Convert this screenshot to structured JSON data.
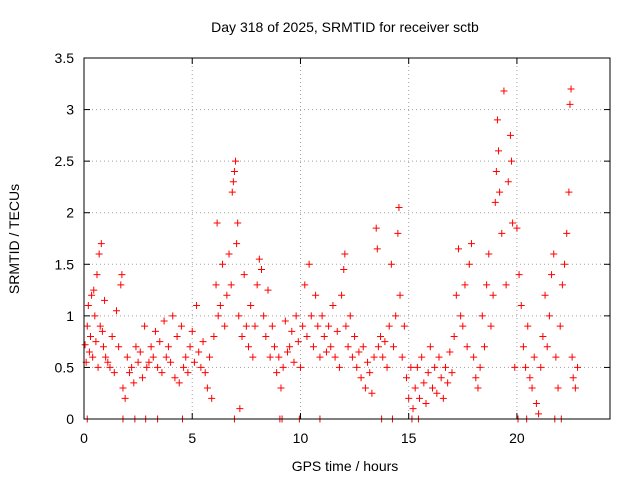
{
  "chart_data": {
    "type": "scatter",
    "title": "Day 318 of 2025, SRMTID for receiver sctb",
    "xlabel": "GPS time / hours",
    "ylabel": "SRMTID / TECUs",
    "xlim": [
      0,
      24.3
    ],
    "ylim": [
      0,
      3.5
    ],
    "xticks": [
      0,
      5,
      10,
      15,
      20
    ],
    "xtick_labels": [
      "0",
      "5",
      "10",
      "15",
      "20"
    ],
    "yticks": [
      0,
      0.5,
      1,
      1.5,
      2,
      2.5,
      3,
      3.5
    ],
    "ytick_labels": [
      "0",
      "0.5",
      "1",
      "1.5",
      "2",
      "2.5",
      "3",
      "3.5"
    ],
    "grid": true,
    "marker": "+",
    "color": "#ff0000",
    "series": [
      {
        "name": "SRMTID",
        "points": [
          [
            0.05,
            0.72
          ],
          [
            0.1,
            0.55
          ],
          [
            0.15,
            0.9
          ],
          [
            0.2,
            1.1
          ],
          [
            0.25,
            0.65
          ],
          [
            0.3,
            0.8
          ],
          [
            0.35,
            1.2
          ],
          [
            0.4,
            0.6
          ],
          [
            0.45,
            1.25
          ],
          [
            0.5,
            1.0
          ],
          [
            0.55,
            0.75
          ],
          [
            0.6,
            1.4
          ],
          [
            0.65,
            0.5
          ],
          [
            0.7,
            1.6
          ],
          [
            0.75,
            0.9
          ],
          [
            0.8,
            1.7
          ],
          [
            0.85,
            0.85
          ],
          [
            0.9,
            0.7
          ],
          [
            0.95,
            1.15
          ],
          [
            1.0,
            0.6
          ],
          [
            1.1,
            0.55
          ],
          [
            1.2,
            0.5
          ],
          [
            1.3,
            0.8
          ],
          [
            1.4,
            0.45
          ],
          [
            1.5,
            1.05
          ],
          [
            1.6,
            0.7
          ],
          [
            1.7,
            1.3
          ],
          [
            1.75,
            1.4
          ],
          [
            1.8,
            0.3
          ],
          [
            1.9,
            0.2
          ],
          [
            2.0,
            0.6
          ],
          [
            2.1,
            0.45
          ],
          [
            2.2,
            0.5
          ],
          [
            2.3,
            0.35
          ],
          [
            2.4,
            0.7
          ],
          [
            2.5,
            0.55
          ],
          [
            2.6,
            0.65
          ],
          [
            2.7,
            0.4
          ],
          [
            2.8,
            0.9
          ],
          [
            2.9,
            0.5
          ],
          [
            3.0,
            0.55
          ],
          [
            3.1,
            0.7
          ],
          [
            3.2,
            0.6
          ],
          [
            3.3,
            0.85
          ],
          [
            3.4,
            0.5
          ],
          [
            3.5,
            0.75
          ],
          [
            3.6,
            0.45
          ],
          [
            3.7,
            0.95
          ],
          [
            3.8,
            0.6
          ],
          [
            3.9,
            0.7
          ],
          [
            4.0,
            0.55
          ],
          [
            4.1,
            1.0
          ],
          [
            4.2,
            0.4
          ],
          [
            4.3,
            0.8
          ],
          [
            4.4,
            0.35
          ],
          [
            4.5,
            0.9
          ],
          [
            4.6,
            0.5
          ],
          [
            4.7,
            0.6
          ],
          [
            4.8,
            0.45
          ],
          [
            4.9,
            0.7
          ],
          [
            5.0,
            0.85
          ],
          [
            5.1,
            0.55
          ],
          [
            5.2,
            1.1
          ],
          [
            5.3,
            0.65
          ],
          [
            5.4,
            0.5
          ],
          [
            5.5,
            0.75
          ],
          [
            5.6,
            0.45
          ],
          [
            5.7,
            0.3
          ],
          [
            5.8,
            0.6
          ],
          [
            5.9,
            0.2
          ],
          [
            6.0,
            0.8
          ],
          [
            6.1,
            1.3
          ],
          [
            6.15,
            1.9
          ],
          [
            6.2,
            1.0
          ],
          [
            6.3,
            1.1
          ],
          [
            6.4,
            1.5
          ],
          [
            6.5,
            0.9
          ],
          [
            6.6,
            1.2
          ],
          [
            6.7,
            1.6
          ],
          [
            6.8,
            1.3
          ],
          [
            6.85,
            2.2
          ],
          [
            6.9,
            2.3
          ],
          [
            6.95,
            2.4
          ],
          [
            7.0,
            2.5
          ],
          [
            7.05,
            1.7
          ],
          [
            7.1,
            1.9
          ],
          [
            7.15,
            1.0
          ],
          [
            7.2,
            0.1
          ],
          [
            7.3,
            0.8
          ],
          [
            7.4,
            1.4
          ],
          [
            7.5,
            0.9
          ],
          [
            7.6,
            0.7
          ],
          [
            7.7,
            1.1
          ],
          [
            7.8,
            0.6
          ],
          [
            7.9,
            0.9
          ],
          [
            8.0,
            1.3
          ],
          [
            8.1,
            1.55
          ],
          [
            8.2,
            1.45
          ],
          [
            8.3,
            1.0
          ],
          [
            8.4,
            0.8
          ],
          [
            8.5,
            1.25
          ],
          [
            8.6,
            0.6
          ],
          [
            8.7,
            0.9
          ],
          [
            8.8,
            0.7
          ],
          [
            8.9,
            0.45
          ],
          [
            9.0,
            0.6
          ],
          [
            9.1,
            0.3
          ],
          [
            9.2,
            0.5
          ],
          [
            9.3,
            0.95
          ],
          [
            9.4,
            0.65
          ],
          [
            9.5,
            0.7
          ],
          [
            9.6,
            0.85
          ],
          [
            9.7,
            0.55
          ],
          [
            9.8,
            1.0
          ],
          [
            9.9,
            0.75
          ],
          [
            10.0,
            0.5
          ],
          [
            10.1,
            0.9
          ],
          [
            10.2,
            1.3
          ],
          [
            10.3,
            0.8
          ],
          [
            10.4,
            1.5
          ],
          [
            10.5,
            1.0
          ],
          [
            10.6,
            0.7
          ],
          [
            10.7,
            1.2
          ],
          [
            10.8,
            0.9
          ],
          [
            10.9,
            0.6
          ],
          [
            11.0,
            1.0
          ],
          [
            11.1,
            0.8
          ],
          [
            11.2,
            0.65
          ],
          [
            11.3,
            0.9
          ],
          [
            11.4,
            0.7
          ],
          [
            11.5,
            1.1
          ],
          [
            11.6,
            0.6
          ],
          [
            11.7,
            0.85
          ],
          [
            11.8,
            0.5
          ],
          [
            11.9,
            1.2
          ],
          [
            12.0,
            1.45
          ],
          [
            12.05,
            1.6
          ],
          [
            12.1,
            0.9
          ],
          [
            12.2,
            0.7
          ],
          [
            12.3,
            1.0
          ],
          [
            12.4,
            0.6
          ],
          [
            12.5,
            0.8
          ],
          [
            12.6,
            0.5
          ],
          [
            12.7,
            0.65
          ],
          [
            12.8,
            0.4
          ],
          [
            12.9,
            0.7
          ],
          [
            13.0,
            0.3
          ],
          [
            13.1,
            0.55
          ],
          [
            13.2,
            0.45
          ],
          [
            13.3,
            0.25
          ],
          [
            13.4,
            0.6
          ],
          [
            13.5,
            1.85
          ],
          [
            13.55,
            1.65
          ],
          [
            13.6,
            0.7
          ],
          [
            13.7,
            0.8
          ],
          [
            13.8,
            0.6
          ],
          [
            13.9,
            0.75
          ],
          [
            14.0,
            0.5
          ],
          [
            14.1,
            0.9
          ],
          [
            14.2,
            1.5
          ],
          [
            14.3,
            0.7
          ],
          [
            14.4,
            1.0
          ],
          [
            14.5,
            1.8
          ],
          [
            14.55,
            2.05
          ],
          [
            14.6,
            1.2
          ],
          [
            14.7,
            0.6
          ],
          [
            14.8,
            0.9
          ],
          [
            14.9,
            0.4
          ],
          [
            15.0,
            0.2
          ],
          [
            15.1,
            0.5
          ],
          [
            15.2,
            0.1
          ],
          [
            15.3,
            0.3
          ],
          [
            15.4,
            0.5
          ],
          [
            15.5,
            0.2
          ],
          [
            15.6,
            0.6
          ],
          [
            15.7,
            0.35
          ],
          [
            15.8,
            0.15
          ],
          [
            15.9,
            0.45
          ],
          [
            16.0,
            0.7
          ],
          [
            16.1,
            0.3
          ],
          [
            16.2,
            0.5
          ],
          [
            16.3,
            0.25
          ],
          [
            16.4,
            0.6
          ],
          [
            16.5,
            0.4
          ],
          [
            16.6,
            0.2
          ],
          [
            16.7,
            0.5
          ],
          [
            16.8,
            0.35
          ],
          [
            16.9,
            0.65
          ],
          [
            17.0,
            0.45
          ],
          [
            17.1,
            0.8
          ],
          [
            17.2,
            1.2
          ],
          [
            17.3,
            1.65
          ],
          [
            17.4,
            1.0
          ],
          [
            17.5,
            0.9
          ],
          [
            17.6,
            1.3
          ],
          [
            17.7,
            0.7
          ],
          [
            17.8,
            1.5
          ],
          [
            17.9,
            1.7
          ],
          [
            18.0,
            0.6
          ],
          [
            18.1,
            0.4
          ],
          [
            18.2,
            0.3
          ],
          [
            18.3,
            0.5
          ],
          [
            18.4,
            1.0
          ],
          [
            18.5,
            0.7
          ],
          [
            18.6,
            1.3
          ],
          [
            18.7,
            1.6
          ],
          [
            18.8,
            0.9
          ],
          [
            18.9,
            1.2
          ],
          [
            19.0,
            2.1
          ],
          [
            19.05,
            2.4
          ],
          [
            19.1,
            2.9
          ],
          [
            19.15,
            2.6
          ],
          [
            19.2,
            2.2
          ],
          [
            19.3,
            1.8
          ],
          [
            19.4,
            3.18
          ],
          [
            19.5,
            1.3
          ],
          [
            19.6,
            2.3
          ],
          [
            19.7,
            2.75
          ],
          [
            19.75,
            2.5
          ],
          [
            19.8,
            1.9
          ],
          [
            19.9,
            0.5
          ],
          [
            20.0,
            1.85
          ],
          [
            20.1,
            1.4
          ],
          [
            20.2,
            1.1
          ],
          [
            20.3,
            0.7
          ],
          [
            20.4,
            0.5
          ],
          [
            20.5,
            0.9
          ],
          [
            20.6,
            0.4
          ],
          [
            20.7,
            0.3
          ],
          [
            20.8,
            0.6
          ],
          [
            20.9,
            0.15
          ],
          [
            21.0,
            0.05
          ],
          [
            21.1,
            0.5
          ],
          [
            21.2,
            0.8
          ],
          [
            21.3,
            1.2
          ],
          [
            21.4,
            0.7
          ],
          [
            21.5,
            1.0
          ],
          [
            21.6,
            1.4
          ],
          [
            21.7,
            1.6
          ],
          [
            21.8,
            0.6
          ],
          [
            21.9,
            0.3
          ],
          [
            22.0,
            0.9
          ],
          [
            22.1,
            1.3
          ],
          [
            22.2,
            1.5
          ],
          [
            22.3,
            1.8
          ],
          [
            22.4,
            2.2
          ],
          [
            22.45,
            3.05
          ],
          [
            22.5,
            3.2
          ],
          [
            22.55,
            0.6
          ],
          [
            22.6,
            0.4
          ],
          [
            22.7,
            0.3
          ],
          [
            22.8,
            0.5
          ],
          [
            0.15,
            0
          ],
          [
            1.8,
            0
          ],
          [
            2.35,
            0
          ],
          [
            2.85,
            0
          ],
          [
            3.4,
            0
          ],
          [
            4.55,
            0
          ],
          [
            6.95,
            0
          ],
          [
            9.05,
            0
          ],
          [
            9.15,
            0
          ],
          [
            9.95,
            0
          ],
          [
            10.9,
            0
          ],
          [
            13.75,
            0
          ],
          [
            14.25,
            0
          ],
          [
            15.15,
            0
          ],
          [
            15.45,
            0
          ],
          [
            20.05,
            0
          ],
          [
            20.45,
            0
          ],
          [
            21.75,
            0
          ],
          [
            22.05,
            0
          ]
        ]
      }
    ]
  }
}
